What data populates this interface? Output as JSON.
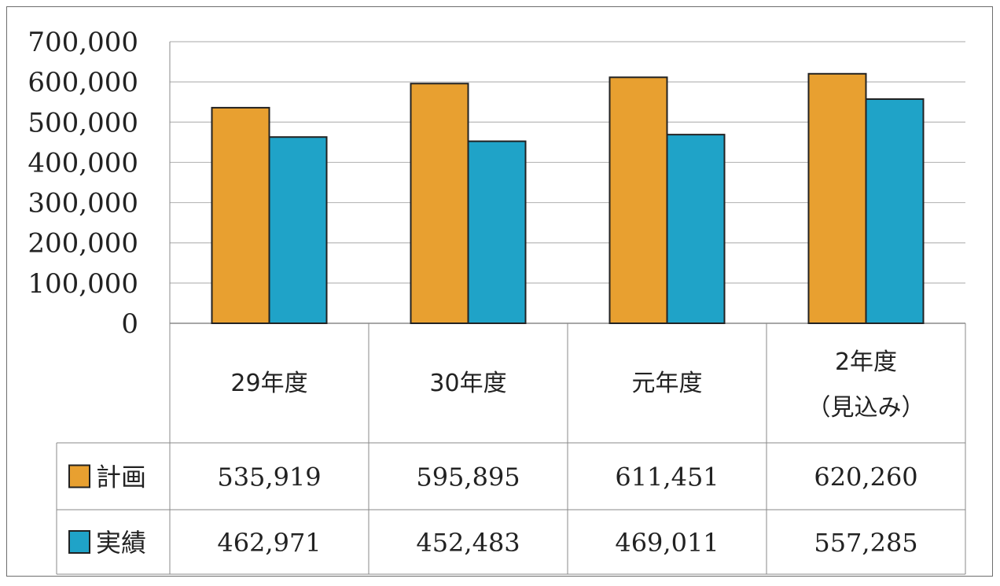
{
  "chart_data": {
    "type": "bar",
    "categories": [
      "29年度",
      "30年度",
      "元年度",
      "2年度\n（見込み）"
    ],
    "series": [
      {
        "name": "計画",
        "values": [
          535919,
          595895,
          611451,
          620260
        ],
        "display": [
          "535,919",
          "595,895",
          "611,451",
          "620,260"
        ],
        "color": "#E8A030"
      },
      {
        "name": "実績",
        "values": [
          462971,
          452483,
          469011,
          557285
        ],
        "display": [
          "462,971",
          "452,483",
          "469,011",
          "557,285"
        ],
        "color": "#1FA3C8"
      }
    ],
    "yticks": [
      "0",
      "100,000",
      "200,000",
      "300,000",
      "400,000",
      "500,000",
      "600,000",
      "700,000"
    ],
    "ylim": [
      0,
      700000
    ],
    "grid": true,
    "legend": "data-table"
  }
}
